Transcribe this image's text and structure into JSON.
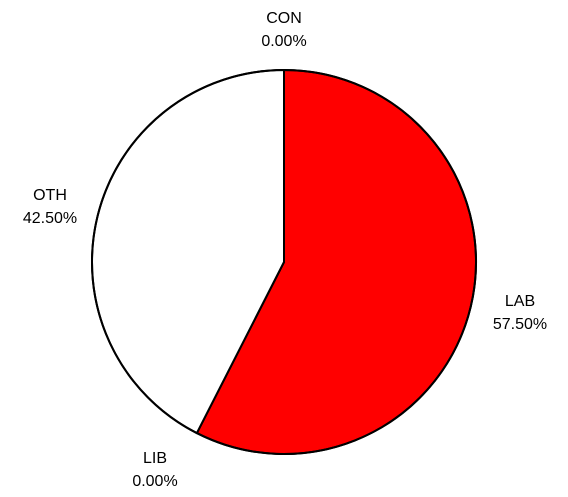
{
  "chart_data": {
    "type": "pie",
    "title": "",
    "slices": [
      {
        "label": "LAB",
        "value": 57.5,
        "display": "57.50%",
        "color": "#ff0000"
      },
      {
        "label": "LIB",
        "value": 0.0,
        "display": "0.00%",
        "color": "#ffff00"
      },
      {
        "label": "OTH",
        "value": 42.5,
        "display": "42.50%",
        "color": "#ffffff"
      },
      {
        "label": "CON",
        "value": 0.0,
        "display": "0.00%",
        "color": "#0000ff"
      }
    ],
    "start": "12 o'clock",
    "direction": "clockwise",
    "outline_color": "#000000"
  }
}
